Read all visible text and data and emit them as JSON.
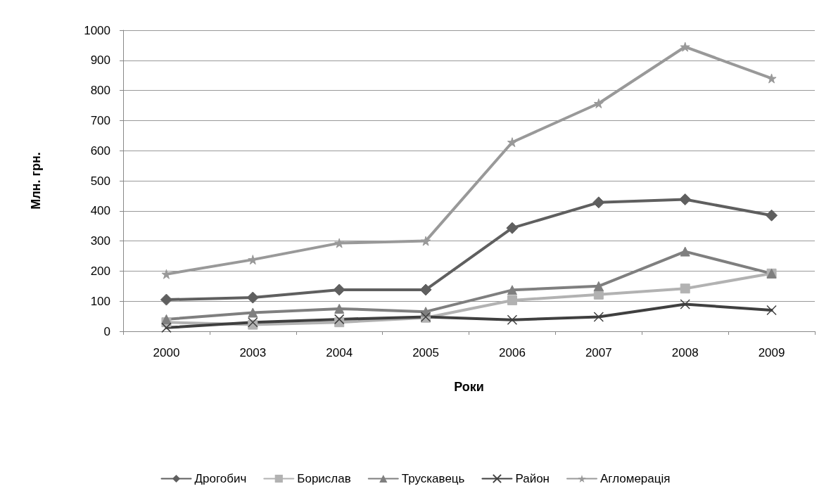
{
  "chart_data": {
    "type": "line",
    "xlabel": "Роки",
    "ylabel": "Млн. грн.",
    "categories": [
      "2000",
      "2003",
      "2004",
      "2005",
      "2006",
      "2007",
      "2008",
      "2009"
    ],
    "series": [
      {
        "name": "Дрогобич",
        "color": "#5f5f5f",
        "marker": "diamond",
        "values": [
          105,
          112,
          138,
          138,
          343,
          428,
          438,
          385
        ]
      },
      {
        "name": "Борислав",
        "color": "#b2b2b2",
        "marker": "square",
        "values": [
          30,
          22,
          30,
          45,
          103,
          122,
          142,
          192
        ]
      },
      {
        "name": "Трускавець",
        "color": "#7f7f7f",
        "marker": "triangle",
        "values": [
          40,
          62,
          75,
          65,
          137,
          150,
          265,
          192
        ]
      },
      {
        "name": "Район",
        "color": "#3f3f3f",
        "marker": "cross",
        "values": [
          12,
          30,
          40,
          48,
          38,
          48,
          90,
          70
        ]
      },
      {
        "name": "Агломерація",
        "color": "#999999",
        "marker": "star",
        "values": [
          190,
          238,
          293,
          300,
          628,
          757,
          945,
          840
        ]
      }
    ],
    "ylim": [
      0,
      1000
    ],
    "yticks": [
      0,
      100,
      200,
      300,
      400,
      500,
      600,
      700,
      800,
      900,
      1000
    ],
    "grid": "y",
    "legend": "bottom",
    "line_style": "solid"
  }
}
